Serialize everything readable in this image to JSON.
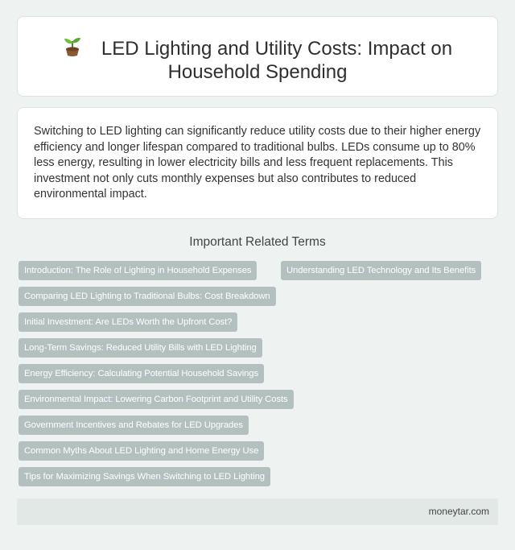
{
  "header": {
    "title": "LED Lighting and Utility Costs: Impact on Household Spending"
  },
  "intro": {
    "text": "Switching to LED lighting can significantly reduce utility costs due to their higher energy efficiency and longer lifespan compared to traditional bulbs. LEDs consume up to 80% less energy, resulting in lower electricity bills and less frequent replacements. This investment not only cuts monthly expenses but also contributes to reduced environmental impact."
  },
  "related": {
    "heading": "Important Related Terms",
    "tags": [
      "Introduction: The Role of Lighting in Household Expenses",
      "Understanding LED Technology and Its Benefits",
      "Comparing LED Lighting to Traditional Bulbs: Cost Breakdown",
      "Initial Investment: Are LEDs Worth the Upfront Cost?",
      "Long-Term Savings: Reduced Utility Bills with LED Lighting",
      "Energy Efficiency: Calculating Potential Household Savings",
      "Environmental Impact: Lowering Carbon Footprint and Utility Costs",
      "Government Incentives and Rebates for LED Upgrades",
      "Common Myths About LED Lighting and Home Energy Use",
      "Tips for Maximizing Savings When Switching to LED Lighting"
    ]
  },
  "footer": {
    "site": "moneytar.com"
  },
  "icons": {
    "title_icon": "sprout-icon"
  },
  "colors": {
    "background": "#eef2f1",
    "tag_background": "#b3c0c0",
    "footer_background": "#e2e8e6"
  }
}
